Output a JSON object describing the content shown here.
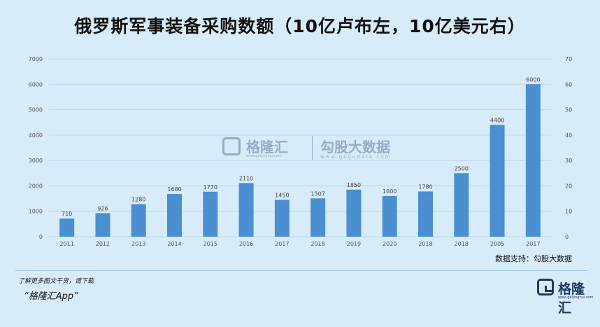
{
  "title": "俄罗斯军事装备采购数额（10亿卢布左，10亿美元右）",
  "source": "数据支持：勾股大数据",
  "footer": {
    "note": "了解更多图文干货，请下载",
    "app": "“格隆汇App”"
  },
  "logo": {
    "text": "格隆汇",
    "sub": "www.gelonghui.com"
  },
  "watermark": {
    "brand1": "格隆汇",
    "brand1_sub": "www.gelonghui.com",
    "brand2": "勾股大数据",
    "brand2_sub": "www.gogudata.com"
  },
  "colors": {
    "bar": "#4a8fd0",
    "grid": "#bcd7ec",
    "axis_text": "#555555",
    "background": "#d7ebf9"
  },
  "chart_data": {
    "type": "bar",
    "categories": [
      "2011",
      "2012",
      "2013",
      "2014",
      "2015",
      "2016",
      "2017",
      "2018",
      "2019",
      "2020",
      "2018",
      "2018",
      "2005",
      "2017"
    ],
    "values": [
      710,
      926,
      1280,
      1680,
      1770,
      2110,
      1450,
      1507,
      1850,
      1600,
      1780,
      2500,
      4400,
      6000
    ],
    "data_labels": [
      "710",
      "926",
      "1280",
      "1680",
      "1770",
      "2110",
      "1450",
      "1507",
      "1850",
      "1600",
      "1780",
      "2500",
      "4400",
      "6000"
    ],
    "ylim_left": [
      0,
      7000
    ],
    "left_ticks": [
      "0",
      "1000",
      "2000",
      "3000",
      "4000",
      "5000",
      "6000",
      "7000"
    ],
    "ylim_right": [
      0,
      70
    ],
    "right_ticks": [
      "0",
      "10",
      "20",
      "30",
      "40",
      "50",
      "60",
      "70"
    ],
    "grid": true,
    "legend": "none",
    "xlabel": "",
    "ylabel": ""
  }
}
